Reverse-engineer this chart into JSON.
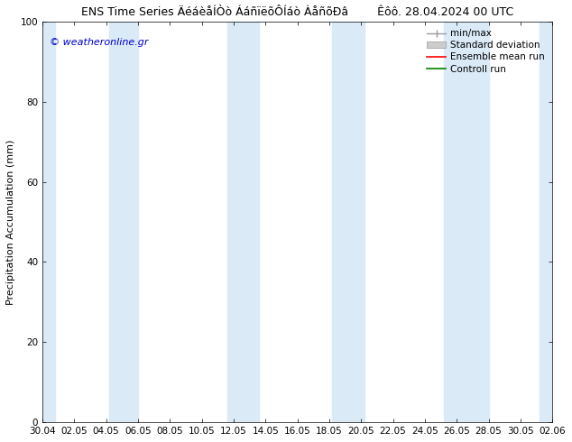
{
  "title_left": "ENS Time Series ÄéáèåÍÒò ÁáñïëõÔÍáò ÀåñõÐâ",
  "title_right": "Êôô. 28.04.2024 00 UTC",
  "ylabel": "Precipitation Accumulation (mm)",
  "watermark": "© weatheronline.gr",
  "ylim": [
    0,
    100
  ],
  "yticks": [
    0,
    20,
    40,
    60,
    80,
    100
  ],
  "xtick_labels": [
    "30.04",
    "02.05",
    "04.05",
    "06.05",
    "08.05",
    "10.05",
    "12.05",
    "14.05",
    "16.05",
    "18.05",
    "20.05",
    "22.05",
    "24.05",
    "26.05",
    "28.05",
    "30.05",
    "02.06"
  ],
  "bg_color": "#ffffff",
  "plot_bg_color": "#ffffff",
  "shade_color": "#daeaf7",
  "shade_alpha": 1.0,
  "shade_bands_idx": [
    0,
    2,
    5,
    7,
    11,
    13
  ],
  "legend_labels": [
    "min/max",
    "Standard deviation",
    "Ensemble mean run",
    "Controll run"
  ],
  "legend_colors": [
    "#999999",
    "#cccccc",
    "#ff0000",
    "#008000"
  ],
  "title_fontsize": 9,
  "axis_label_fontsize": 8,
  "tick_fontsize": 7.5,
  "legend_fontsize": 7.5,
  "watermark_color": "#0000cc",
  "watermark_fontsize": 8
}
